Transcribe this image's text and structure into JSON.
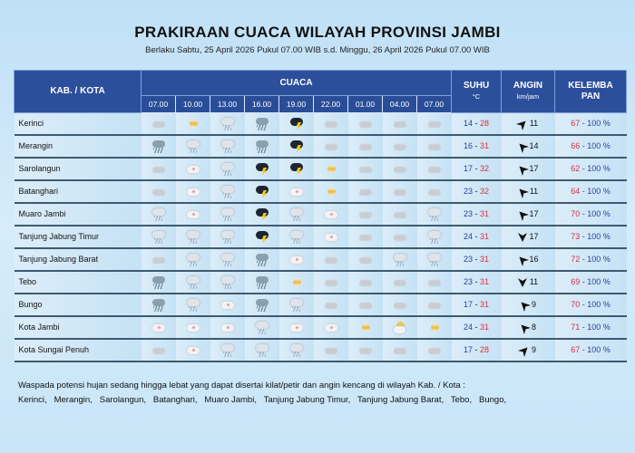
{
  "header": {
    "title": "PRAKIRAAN CUACA WILAYAH PROVINSI JAMBI",
    "subtitle": "Berlaku Sabtu, 25 April 2026 Pukul 07.00 WIB s.d. Minggu, 26 April 2026 Pukul 07.00 WIB"
  },
  "columns": {
    "kab": "KAB. / KOTA",
    "cuaca": "CUACA",
    "suhu": "SUHU",
    "suhu_unit": "°C",
    "angin": "ANGIN",
    "angin_unit": "km/jam",
    "kelembapan": "KELEMBA PAN"
  },
  "times": [
    "07.00",
    "10.00",
    "13.00",
    "16.00",
    "19.00",
    "22.00",
    "01.00",
    "04.00",
    "07.00"
  ],
  "weather_legend": {
    "B": "cloudy-icon",
    "C": "sunny-hazy-icon",
    "PC": "partly-cloudy-icon",
    "PCS": "sun-behind-cloud-icon",
    "LR": "light-rain-icon",
    "MR": "moderate-rain-icon",
    "TS": "thunderstorm-icon"
  },
  "rows": [
    {
      "name": "Kerinci",
      "wx": [
        "B",
        "C",
        "LR",
        "MR",
        "TS",
        "B",
        "B",
        "B",
        "B"
      ],
      "tmin": "14",
      "tmax": "28",
      "wind_dir": "northeast",
      "wind": "11",
      "hmin": "67",
      "hmax": "100 %"
    },
    {
      "name": "Merangin",
      "wx": [
        "MR",
        "LR",
        "LR",
        "MR",
        "TS",
        "B",
        "B",
        "B",
        "B"
      ],
      "tmin": "16",
      "tmax": "31",
      "wind_dir": "northwest",
      "wind": "14",
      "hmin": "66",
      "hmax": "100 %"
    },
    {
      "name": "Sarolangun",
      "wx": [
        "B",
        "PC",
        "LR",
        "TS",
        "TS",
        "C",
        "B",
        "B",
        "B"
      ],
      "tmin": "17",
      "tmax": "32",
      "wind_dir": "northwest",
      "wind": "17",
      "hmin": "62",
      "hmax": "100 %"
    },
    {
      "name": "Batanghari",
      "wx": [
        "B",
        "PC",
        "LR",
        "TS",
        "PC",
        "C",
        "B",
        "B",
        "B"
      ],
      "tmin": "23",
      "tmax": "32",
      "wind_dir": "northwest",
      "wind": "11",
      "hmin": "64",
      "hmax": "100 %"
    },
    {
      "name": "Muaro Jambi",
      "wx": [
        "LR",
        "PC",
        "LR",
        "TS",
        "LR",
        "PC",
        "B",
        "B",
        "LR"
      ],
      "tmin": "23",
      "tmax": "31",
      "wind_dir": "northwest",
      "wind": "17",
      "hmin": "70",
      "hmax": "100 %"
    },
    {
      "name": "Tanjung Jabung Timur",
      "wx": [
        "LR",
        "LR",
        "LR",
        "TS",
        "LR",
        "PC",
        "B",
        "B",
        "LR"
      ],
      "tmin": "24",
      "tmax": "31",
      "wind_dir": "south",
      "wind": "17",
      "hmin": "73",
      "hmax": "100 %"
    },
    {
      "name": "Tanjung Jabung Barat",
      "wx": [
        "B",
        "LR",
        "LR",
        "MR",
        "PC",
        "B",
        "B",
        "LR",
        "LR"
      ],
      "tmin": "23",
      "tmax": "31",
      "wind_dir": "northwest",
      "wind": "16",
      "hmin": "72",
      "hmax": "100 %"
    },
    {
      "name": "Tebo",
      "wx": [
        "MR",
        "LR",
        "LR",
        "MR",
        "C",
        "B",
        "B",
        "B",
        "B"
      ],
      "tmin": "23",
      "tmax": "31",
      "wind_dir": "south",
      "wind": "11",
      "hmin": "69",
      "hmax": "100 %"
    },
    {
      "name": "Bungo",
      "wx": [
        "MR",
        "LR",
        "PC",
        "MR",
        "LR",
        "B",
        "B",
        "B",
        "B"
      ],
      "tmin": "17",
      "tmax": "31",
      "wind_dir": "northwest",
      "wind": "9",
      "hmin": "70",
      "hmax": "100 %"
    },
    {
      "name": "Kota Jambi",
      "wx": [
        "PC",
        "PC",
        "PC",
        "LR",
        "PC",
        "PC",
        "C",
        "PCS",
        "C"
      ],
      "tmin": "24",
      "tmax": "31",
      "wind_dir": "northwest",
      "wind": "8",
      "hmin": "71",
      "hmax": "100 %"
    },
    {
      "name": "Kota Sungai Penuh",
      "wx": [
        "B",
        "PC",
        "LR",
        "LR",
        "LR",
        "B",
        "B",
        "B",
        "B"
      ],
      "tmin": "17",
      "tmax": "28",
      "wind_dir": "northeast",
      "wind": "9",
      "hmin": "67",
      "hmax": "100 %"
    }
  ],
  "note": {
    "line1": "Waspada potensi hujan sedang hingga lebat yang dapat disertai kilat/petir dan angin kencang di wilayah Kab. / Kota :",
    "line2": "Kerinci,   Merangin,   Sarolangun,   Batanghari,   Muaro Jambi,   Tanjung Jabung Timur,   Tanjung Jabung Barat,   Tebo,   Bungo,"
  }
}
